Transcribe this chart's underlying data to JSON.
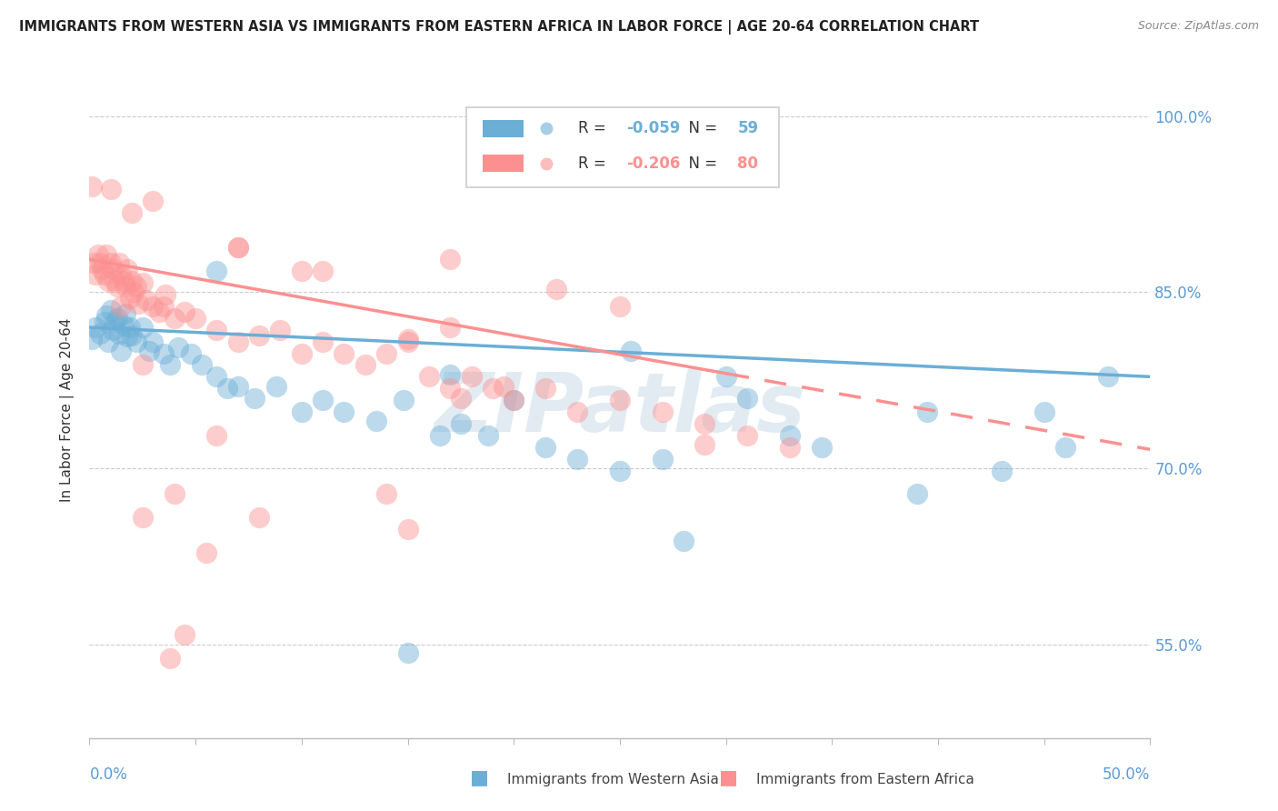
{
  "title": "IMMIGRANTS FROM WESTERN ASIA VS IMMIGRANTS FROM EASTERN AFRICA IN LABOR FORCE | AGE 20-64 CORRELATION CHART",
  "source": "Source: ZipAtlas.com",
  "ylabel": "In Labor Force | Age 20-64",
  "xlim": [
    0.0,
    0.5
  ],
  "ylim": [
    0.47,
    1.03
  ],
  "x_ticks": [
    0.0,
    0.05,
    0.1,
    0.15,
    0.2,
    0.25,
    0.3,
    0.35,
    0.4,
    0.45,
    0.5
  ],
  "y_ticks": [
    0.55,
    0.7,
    0.85,
    1.0
  ],
  "y_tick_labels": [
    "55.0%",
    "70.0%",
    "85.0%",
    "100.0%"
  ],
  "blue_color": "#6baed6",
  "pink_color": "#fc9090",
  "blue_R": -0.059,
  "blue_N": 59,
  "pink_R": -0.206,
  "pink_N": 80,
  "legend_label_blue": "Immigrants from Western Asia",
  "legend_label_pink": "Immigrants from Eastern Africa",
  "watermark": "ZIPatlas",
  "blue_trend_x0": 0.0,
  "blue_trend_y0": 0.82,
  "blue_trend_x1": 0.5,
  "blue_trend_y1": 0.778,
  "pink_trend_x0": 0.0,
  "pink_trend_y0": 0.878,
  "pink_trend_x1": 0.5,
  "pink_trend_y1": 0.716,
  "pink_dash_from": 0.3,
  "blue_points_x": [
    0.001,
    0.003,
    0.005,
    0.007,
    0.008,
    0.009,
    0.01,
    0.011,
    0.012,
    0.013,
    0.014,
    0.015,
    0.016,
    0.017,
    0.018,
    0.019,
    0.02,
    0.022,
    0.025,
    0.028,
    0.03,
    0.035,
    0.038,
    0.042,
    0.048,
    0.053,
    0.06,
    0.065,
    0.07,
    0.078,
    0.088,
    0.1,
    0.11,
    0.12,
    0.135,
    0.148,
    0.165,
    0.175,
    0.188,
    0.2,
    0.215,
    0.23,
    0.25,
    0.27,
    0.3,
    0.33,
    0.345,
    0.39,
    0.45,
    0.46,
    0.48,
    0.15,
    0.28,
    0.06,
    0.255,
    0.17,
    0.31,
    0.395,
    0.43
  ],
  "blue_points_y": [
    0.81,
    0.82,
    0.815,
    0.825,
    0.83,
    0.808,
    0.835,
    0.818,
    0.825,
    0.828,
    0.815,
    0.8,
    0.822,
    0.832,
    0.812,
    0.82,
    0.813,
    0.808,
    0.82,
    0.8,
    0.808,
    0.798,
    0.788,
    0.803,
    0.798,
    0.788,
    0.778,
    0.768,
    0.77,
    0.76,
    0.77,
    0.748,
    0.758,
    0.748,
    0.74,
    0.758,
    0.728,
    0.738,
    0.728,
    0.758,
    0.718,
    0.708,
    0.698,
    0.708,
    0.778,
    0.728,
    0.718,
    0.678,
    0.748,
    0.718,
    0.778,
    0.543,
    0.638,
    0.868,
    0.8,
    0.78,
    0.76,
    0.748,
    0.698
  ],
  "pink_points_x": [
    0.001,
    0.002,
    0.003,
    0.004,
    0.005,
    0.006,
    0.007,
    0.008,
    0.009,
    0.01,
    0.011,
    0.012,
    0.013,
    0.014,
    0.015,
    0.016,
    0.017,
    0.018,
    0.019,
    0.02,
    0.021,
    0.022,
    0.023,
    0.025,
    0.027,
    0.03,
    0.033,
    0.036,
    0.04,
    0.045,
    0.05,
    0.06,
    0.07,
    0.08,
    0.09,
    0.1,
    0.11,
    0.12,
    0.13,
    0.14,
    0.15,
    0.16,
    0.17,
    0.18,
    0.19,
    0.2,
    0.215,
    0.23,
    0.25,
    0.27,
    0.29,
    0.31,
    0.33,
    0.08,
    0.035,
    0.15,
    0.04,
    0.025,
    0.06,
    0.02,
    0.01,
    0.015,
    0.03,
    0.07,
    0.11,
    0.17,
    0.22,
    0.038,
    0.045,
    0.17,
    0.1,
    0.25,
    0.175,
    0.055,
    0.29,
    0.15,
    0.07,
    0.025,
    0.14,
    0.195
  ],
  "pink_points_y": [
    0.94,
    0.875,
    0.865,
    0.882,
    0.875,
    0.87,
    0.865,
    0.882,
    0.86,
    0.875,
    0.87,
    0.86,
    0.855,
    0.875,
    0.865,
    0.86,
    0.855,
    0.87,
    0.845,
    0.86,
    0.85,
    0.855,
    0.84,
    0.858,
    0.843,
    0.838,
    0.833,
    0.848,
    0.828,
    0.833,
    0.828,
    0.818,
    0.808,
    0.813,
    0.818,
    0.798,
    0.808,
    0.798,
    0.788,
    0.798,
    0.808,
    0.778,
    0.768,
    0.778,
    0.768,
    0.758,
    0.768,
    0.748,
    0.758,
    0.748,
    0.738,
    0.728,
    0.718,
    0.658,
    0.838,
    0.648,
    0.678,
    0.788,
    0.728,
    0.918,
    0.938,
    0.838,
    0.928,
    0.888,
    0.868,
    0.878,
    0.853,
    0.538,
    0.558,
    0.82,
    0.868,
    0.838,
    0.76,
    0.628,
    0.72,
    0.81,
    0.888,
    0.658,
    0.678,
    0.77
  ]
}
